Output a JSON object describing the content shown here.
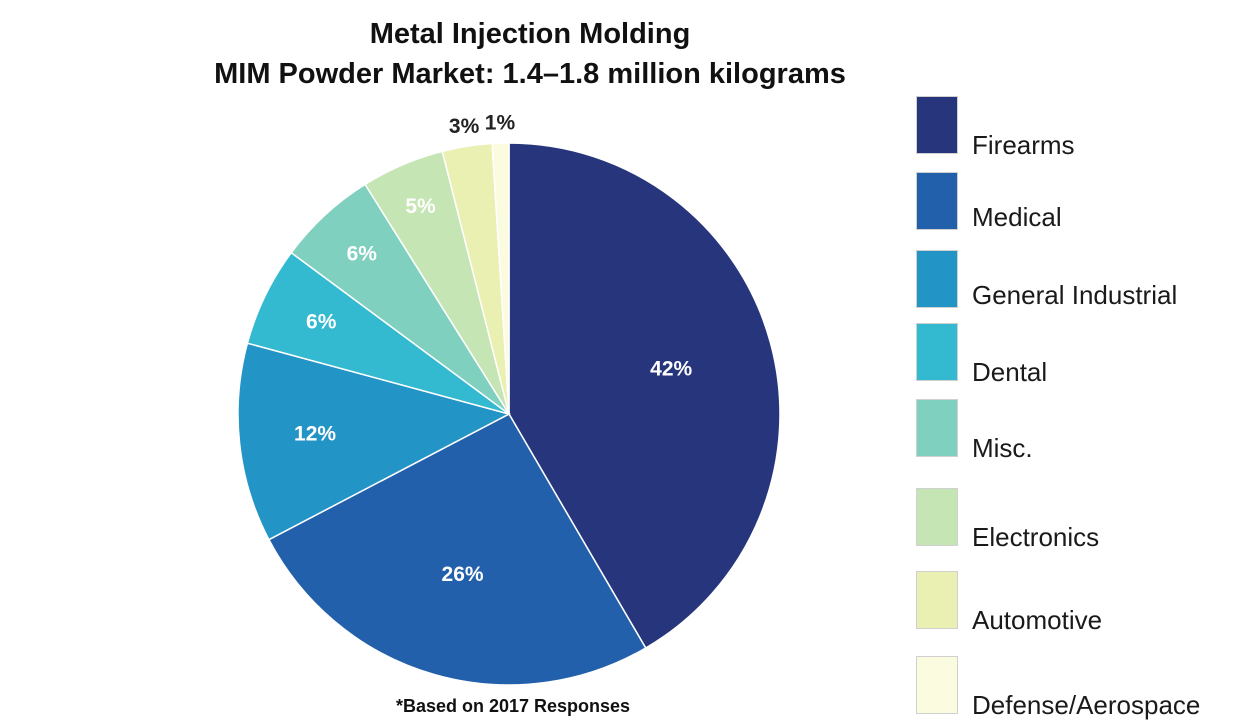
{
  "chart_data": {
    "type": "pie",
    "title": "Metal Injection Molding",
    "subtitle": "MIM Powder Market: 1.4–1.8 million kilograms",
    "footnote": "*Based on 2017 Responses",
    "legend_position": "right",
    "slices": [
      {
        "name": "Firearms",
        "value": 42,
        "label": "42%",
        "color": "#27367c"
      },
      {
        "name": "Medical",
        "value": 26,
        "label": "26%",
        "color": "#2360ab"
      },
      {
        "name": "General Industrial",
        "value": 12,
        "label": "12%",
        "color": "#2394c6"
      },
      {
        "name": "Dental",
        "value": 6,
        "label": "6%",
        "color": "#33bad1"
      },
      {
        "name": "Misc.",
        "value": 6,
        "label": "6%",
        "color": "#80d0bf"
      },
      {
        "name": "Electronics",
        "value": 5,
        "label": "5%",
        "color": "#c5e5b5"
      },
      {
        "name": "Automotive",
        "value": 3,
        "label": "3%",
        "color": "#e9f0b2"
      },
      {
        "name": "Defense/Aerospace",
        "value": 1,
        "label": "1%",
        "color": "#fbfbe0"
      }
    ]
  }
}
